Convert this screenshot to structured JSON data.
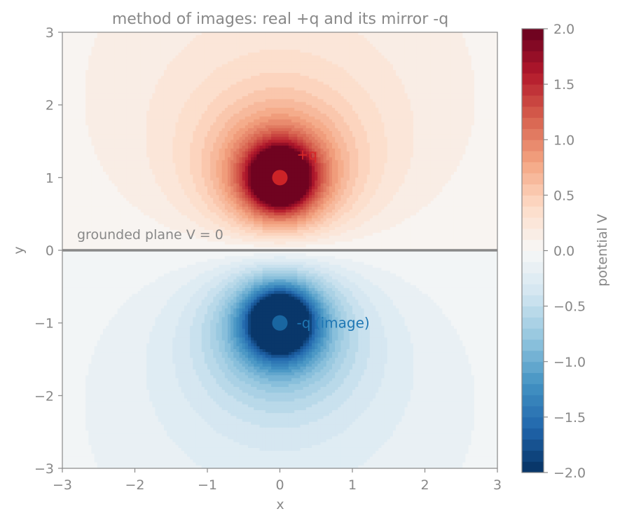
{
  "chart_data": {
    "type": "heatmap",
    "title": "method of images: real +q and its mirror -q",
    "xlabel": "x",
    "ylabel": "y",
    "xlim": [
      -3,
      3
    ],
    "ylim": [
      -3,
      3
    ],
    "xticks": [
      "−3",
      "−2",
      "−1",
      "0",
      "1",
      "2",
      "3"
    ],
    "xtick_values": [
      -3,
      -2,
      -1,
      0,
      1,
      2,
      3
    ],
    "yticks": [
      "−3",
      "−2",
      "−1",
      "0",
      "1",
      "2",
      "3"
    ],
    "ytick_values": [
      -3,
      -2,
      -1,
      0,
      1,
      2,
      3
    ],
    "grid": false,
    "colorbar": {
      "label": "potential V",
      "range": [
        -2,
        2
      ],
      "levels": 41,
      "ticks": [
        "−2.0",
        "−1.5",
        "−1.0",
        "−0.5",
        "0.0",
        "0.5",
        "1.0",
        "1.5",
        "2.0"
      ],
      "tick_values": [
        -2,
        -1.5,
        -1,
        -0.5,
        0,
        0.5,
        1,
        1.5,
        2
      ],
      "colormap": "RdBu_r"
    },
    "field": {
      "function": "V = 1/r(+q) - 1/r(-q)",
      "clip": [
        -2,
        2
      ]
    },
    "charges": [
      {
        "label": "+q",
        "x": 0,
        "y": 1,
        "q": 1,
        "color": "#d62728"
      },
      {
        "label": "-q (image)",
        "x": 0,
        "y": -1,
        "q": -1,
        "color": "#1f77b4"
      }
    ],
    "plane": {
      "label": "grounded plane  V = 0",
      "y": 0,
      "color": "#888888"
    }
  }
}
